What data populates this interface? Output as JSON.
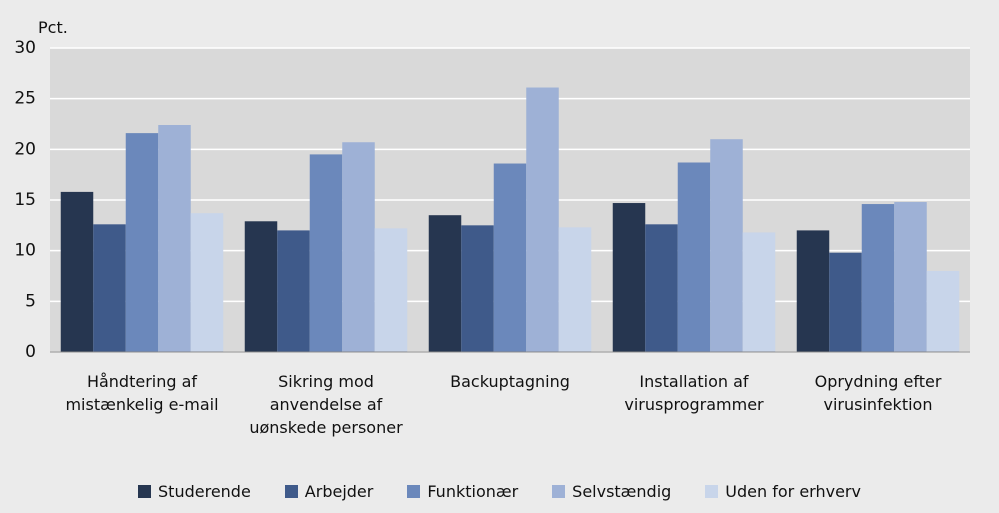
{
  "chart_data": {
    "type": "bar",
    "y_label": "Pct.",
    "categories": [
      "Håndtering af\nmistænkelig e-mail",
      "Sikring mod\nanvendelse af\nuønskede personer",
      "Backuptagning",
      "Installation af\nvirusprogrammer",
      "Oprydning efter\nvirusinfektion"
    ],
    "series": [
      {
        "name": "Studerende",
        "color": "#263650",
        "values": [
          15.8,
          12.9,
          13.5,
          14.7,
          12.0
        ]
      },
      {
        "name": "Arbejder",
        "color": "#3f5a8a",
        "values": [
          12.6,
          12.0,
          12.5,
          12.6,
          9.8
        ]
      },
      {
        "name": "Funktionær",
        "color": "#6b88bb",
        "values": [
          21.6,
          19.5,
          18.6,
          18.7,
          14.6
        ]
      },
      {
        "name": "Selvstændig",
        "color": "#9eb1d6",
        "values": [
          22.4,
          20.7,
          26.1,
          21.0,
          14.8
        ]
      },
      {
        "name": "Uden for erhverv",
        "color": "#c8d5ea",
        "values": [
          13.7,
          12.2,
          12.3,
          11.8,
          8.0
        ]
      }
    ],
    "ylim": [
      0,
      30
    ],
    "yticks": [
      0,
      5,
      10,
      15,
      20,
      25,
      30
    ],
    "grid": true,
    "legend": "bottom"
  }
}
